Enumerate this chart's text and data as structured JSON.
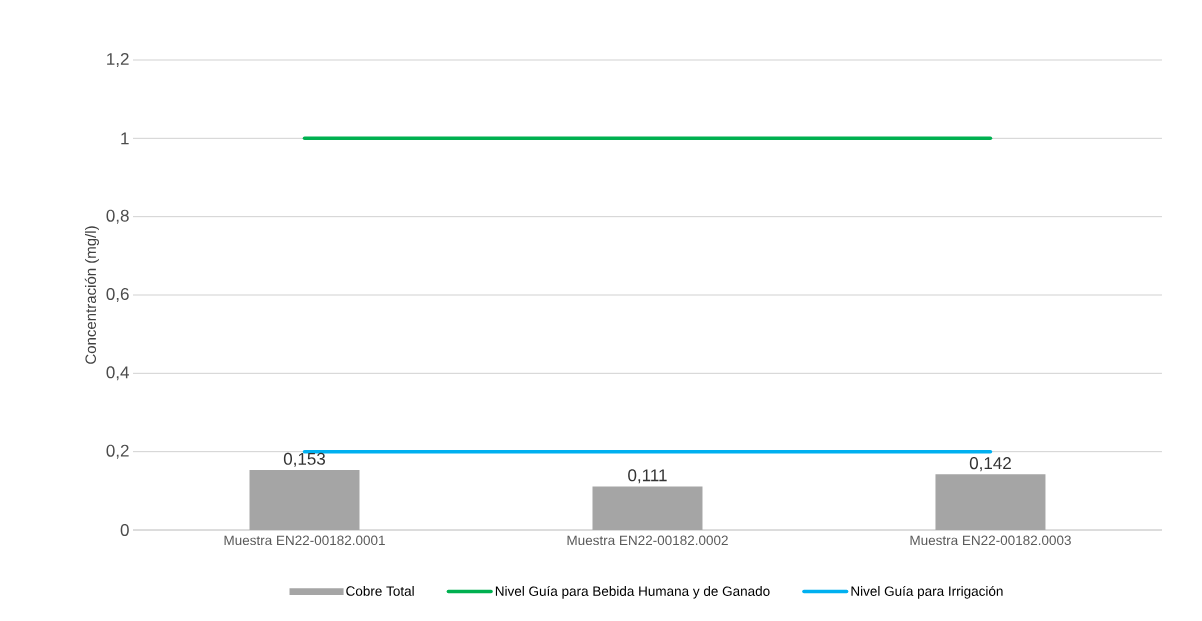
{
  "chart_data": {
    "type": "bar",
    "ylabel": "Concentración (mg/l)",
    "categories": [
      "Muestra EN22-00182.0001",
      "Muestra EN22-00182.0002",
      "Muestra EN22-00182.0003"
    ],
    "series": [
      {
        "name": "Cobre Total",
        "color": "#a5a5a5",
        "values": [
          0.153,
          0.111,
          0.142
        ],
        "value_labels": [
          "0,153",
          "0,111",
          "0,142"
        ]
      },
      {
        "name": "Nivel Guía para Bebida Humana y de Ganado",
        "type": "line",
        "color": "#00b050",
        "values": [
          1,
          1,
          1
        ]
      },
      {
        "name": "Nivel Guía para Irrigación",
        "type": "line",
        "color": "#00b0f0",
        "values": [
          0.2,
          0.2,
          0.2
        ]
      }
    ],
    "ylim": [
      0,
      1.2
    ],
    "yticks": [
      0,
      {
        "value": 0.2,
        "label": "0,2"
      },
      {
        "value": 0.4,
        "label": "0,4"
      },
      {
        "value": 0.6,
        "label": "0,6"
      },
      {
        "value": 0.8,
        "label": "0,8"
      },
      1,
      {
        "value": 1.2,
        "label": "1,2"
      }
    ],
    "grid": "y",
    "legend": "bottom"
  }
}
